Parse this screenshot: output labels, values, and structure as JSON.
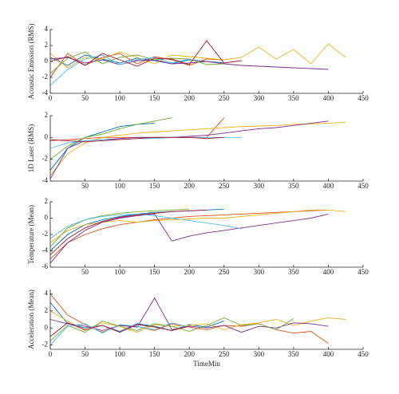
{
  "chart_data": [
    {
      "type": "line",
      "y_label": "Acoustic Emission (RMS)",
      "x": [
        0,
        25,
        50,
        75,
        100,
        125,
        150,
        175,
        200,
        225,
        250,
        275,
        300,
        325,
        350,
        375,
        400,
        425
      ],
      "xlim": [
        0,
        450
      ],
      "ylim": [
        -4,
        4
      ],
      "xticks": [
        0,
        50,
        100,
        150,
        200,
        250,
        300,
        350,
        400,
        450
      ],
      "yticks": [
        -4,
        -2,
        0,
        2,
        4
      ],
      "series": [
        {
          "color": "#0072bd",
          "values": [
            0.5,
            -0.5,
            0.8,
            0.3,
            -0.2,
            0.4,
            0.1,
            -0.3,
            0.2,
            0,
            -0.2,
            null,
            null,
            null,
            null,
            null,
            null,
            null
          ]
        },
        {
          "color": "#d95319",
          "values": [
            -2,
            1,
            -0.5,
            0.5,
            1,
            -0.3,
            0.6,
            0.2,
            -0.5,
            0.3,
            0.2,
            null,
            null,
            null,
            null,
            null,
            null,
            null
          ]
        },
        {
          "color": "#edb120",
          "values": [
            1,
            -0.8,
            0.5,
            0.3,
            1.2,
            0.5,
            -0.3,
            0.8,
            0.6,
            0.4,
            0.2,
            0.5,
            1.8,
            0.3,
            1.5,
            -0.3,
            2.2,
            0.5
          ]
        },
        {
          "color": "#7e2f8e",
          "values": [
            0.3,
            0.5,
            -0.2,
            0.2,
            -0.4,
            0.1,
            0.2,
            -0.3,
            -0.2,
            0,
            -0.3,
            -0.5,
            -0.6,
            -0.7,
            -0.8,
            -0.9,
            -1.0,
            null
          ]
        },
        {
          "color": "#77ac30",
          "values": [
            -1.5,
            0.4,
            1.2,
            -0.3,
            0.5,
            0.8,
            0.2,
            0.4,
            0.3,
            -0.4,
            -0.3,
            null,
            null,
            null,
            null,
            null,
            null,
            null
          ]
        },
        {
          "color": "#4dbeee",
          "values": [
            -3,
            -1,
            0.3,
            0.8,
            -0.4,
            0.2,
            0.5,
            -0.2,
            0.3,
            null,
            null,
            null,
            null,
            null,
            null,
            null,
            null,
            null
          ]
        },
        {
          "color": "#a2142f",
          "values": [
            0,
            0.6,
            -0.5,
            1,
            0.2,
            -0.6,
            0.4,
            0.3,
            -0.4,
            2.6,
            -0.2,
            0.1,
            null,
            null,
            null,
            null,
            null,
            null
          ]
        }
      ]
    },
    {
      "type": "line",
      "y_label": "1D Laser (RMS)",
      "x": [
        0,
        25,
        50,
        75,
        100,
        125,
        150,
        175,
        200,
        225,
        250,
        275,
        300,
        325,
        350,
        375,
        400,
        425
      ],
      "xlim": [
        0,
        450
      ],
      "ylim": [
        -4,
        2
      ],
      "xticks": [
        50,
        100,
        150,
        200,
        250,
        300,
        350,
        400,
        450
      ],
      "yticks": [
        -4,
        -2,
        0,
        2
      ],
      "series": [
        {
          "color": "#0072bd",
          "values": [
            -3,
            -1,
            0,
            0.5,
            1,
            1.2,
            1.3,
            null,
            null,
            null,
            null,
            null,
            null,
            null,
            null,
            null,
            null,
            null
          ]
        },
        {
          "color": "#d95319",
          "values": [
            -0.3,
            -0.2,
            -0.1,
            0,
            0,
            0,
            0,
            0,
            0,
            0,
            1.8,
            null,
            null,
            null,
            null,
            null,
            null,
            null
          ]
        },
        {
          "color": "#edb120",
          "values": [
            -3.5,
            -1.5,
            -0.5,
            0,
            0.2,
            0.4,
            0.5,
            0.6,
            0.7,
            0.8,
            0.9,
            1,
            1.05,
            1.1,
            1.2,
            1.25,
            1.3,
            1.4
          ]
        },
        {
          "color": "#7e2f8e",
          "values": [
            -3.8,
            -1,
            -0.3,
            -0.2,
            -0.1,
            0,
            0,
            0,
            0.1,
            0.2,
            0.4,
            0.6,
            0.8,
            0.9,
            1.1,
            1.3,
            1.5,
            null
          ]
        },
        {
          "color": "#77ac30",
          "values": [
            -2,
            -0.8,
            0,
            0.3,
            0.8,
            1.2,
            1.5,
            1.8,
            null,
            null,
            null,
            null,
            null,
            null,
            null,
            null,
            null,
            null
          ]
        },
        {
          "color": "#4dbeee",
          "values": [
            -1,
            -0.5,
            -0.3,
            -0.2,
            -0.2,
            -0.1,
            -0.1,
            0,
            0,
            0,
            0,
            0,
            null,
            null,
            null,
            null,
            null,
            null
          ]
        },
        {
          "color": "#a2142f",
          "values": [
            -0.2,
            -0.3,
            -0.4,
            -0.3,
            -0.2,
            -0.1,
            0,
            0,
            0,
            -0.1,
            0,
            null,
            null,
            null,
            null,
            null,
            null,
            null
          ]
        }
      ]
    },
    {
      "type": "line",
      "y_label": "Temperature (Mean)",
      "x": [
        0,
        25,
        50,
        75,
        100,
        125,
        150,
        175,
        200,
        225,
        250,
        275,
        300,
        325,
        350,
        375,
        400,
        425
      ],
      "xlim": [
        0,
        450
      ],
      "ylim": [
        -6,
        2
      ],
      "xticks": [
        50,
        100,
        150,
        200,
        250,
        300,
        350,
        400,
        450
      ],
      "yticks": [
        -6,
        -4,
        -2,
        0,
        2
      ],
      "series": [
        {
          "color": "#0072bd",
          "values": [
            -4,
            -2,
            -0.8,
            -0.2,
            0.2,
            0.5,
            0.7,
            0.8,
            0.9,
            1,
            1.1,
            null,
            null,
            null,
            null,
            null,
            null,
            null
          ]
        },
        {
          "color": "#d95319",
          "values": [
            -5,
            -3,
            -2,
            -1.3,
            -0.8,
            -0.5,
            -0.2,
            0,
            0.2,
            0.3,
            0.4,
            0.5,
            0.6,
            0.7,
            0.8,
            0.9,
            1,
            null
          ]
        },
        {
          "color": "#edb120",
          "values": [
            -3,
            -1.5,
            -0.8,
            -0.5,
            -0.3,
            -0.5,
            -0.3,
            -0.2,
            -0.1,
            0,
            0,
            0.2,
            0.4,
            0.6,
            0.8,
            1,
            1,
            0.8
          ]
        },
        {
          "color": "#7e2f8e",
          "values": [
            -5.5,
            -3,
            -1.5,
            -0.5,
            0,
            0.3,
            0.5,
            -2.8,
            -2.2,
            -1.8,
            -1.5,
            -1.2,
            -0.9,
            -0.6,
            -0.3,
            0,
            0.5,
            null
          ]
        },
        {
          "color": "#77ac30",
          "values": [
            -3.5,
            -1.2,
            -0.2,
            0.3,
            0.6,
            0.8,
            0.9,
            1,
            1.1,
            null,
            null,
            null,
            null,
            null,
            null,
            null,
            null,
            null
          ]
        },
        {
          "color": "#4dbeee",
          "values": [
            -2.5,
            -1,
            -0.2,
            0.2,
            0.4,
            0.5,
            0.3,
            0,
            -0.3,
            -0.6,
            -0.9,
            -1.3,
            null,
            null,
            null,
            null,
            null,
            null
          ]
        },
        {
          "color": "#a2142f",
          "values": [
            -4.5,
            -2.5,
            -1.2,
            -0.4,
            0.1,
            0.4,
            0.6,
            0.8,
            0.9,
            1,
            null,
            null,
            null,
            null,
            null,
            null,
            null,
            null
          ]
        }
      ]
    },
    {
      "type": "line",
      "y_label": "Acceleration (Mean)",
      "x_label": "TimeMin",
      "x": [
        0,
        25,
        50,
        75,
        100,
        125,
        150,
        175,
        200,
        225,
        250,
        275,
        300,
        325,
        350,
        375,
        400,
        425
      ],
      "xlim": [
        0,
        450
      ],
      "ylim": [
        -2.5,
        4.5
      ],
      "xticks": [
        0,
        50,
        100,
        150,
        200,
        250,
        300,
        350,
        400,
        450
      ],
      "yticks": [
        -2,
        0,
        2,
        4
      ],
      "series": [
        {
          "color": "#0072bd",
          "values": [
            3,
            0.5,
            0,
            0.3,
            -0.4,
            0.5,
            0.2,
            -0.3,
            0.4,
            0.1,
            0.8,
            null,
            null,
            null,
            null,
            null,
            null,
            null
          ]
        },
        {
          "color": "#d95319",
          "values": [
            4,
            1.5,
            0.4,
            -0.5,
            0.3,
            0.2,
            -0.3,
            0.5,
            0.1,
            -0.2,
            0.3,
            0.2,
            0.5,
            -0.2,
            -0.6,
            -0.4,
            -1.8,
            null
          ]
        },
        {
          "color": "#edb120",
          "values": [
            2,
            0.8,
            -0.3,
            0.6,
            0.2,
            -0.5,
            0.4,
            0.2,
            0.3,
            0.5,
            -0.2,
            0.4,
            0.6,
            1.0,
            0.3,
            0.8,
            1.2,
            1.0
          ]
        },
        {
          "color": "#7e2f8e",
          "values": [
            1,
            0.5,
            0.2,
            -0.3,
            0.3,
            0.1,
            3.5,
            -0.2,
            0.2,
            0,
            0.3,
            -0.5,
            0.2,
            0,
            0.6,
            0.5,
            0.2,
            null
          ]
        },
        {
          "color": "#77ac30",
          "values": [
            -1.5,
            0.3,
            -0.5,
            0.8,
            0.2,
            -0.3,
            0.5,
            0.2,
            -0.4,
            0.3,
            1.2,
            0.3,
            0.5,
            -0.2,
            1.1,
            null,
            null,
            null
          ]
        },
        {
          "color": "#4dbeee",
          "values": [
            -2,
            0.2,
            0.5,
            -0.6,
            0.4,
            0.2,
            -0.2,
            0.6,
            0.1,
            null,
            null,
            null,
            null,
            null,
            null,
            null,
            null,
            null
          ]
        },
        {
          "color": "#a2142f",
          "values": [
            -1,
            0.6,
            -0.2,
            0.3,
            -0.5,
            0.4,
            0.1,
            -0.3,
            0.2,
            null,
            null,
            null,
            null,
            null,
            null,
            null,
            null,
            null
          ]
        }
      ]
    }
  ]
}
